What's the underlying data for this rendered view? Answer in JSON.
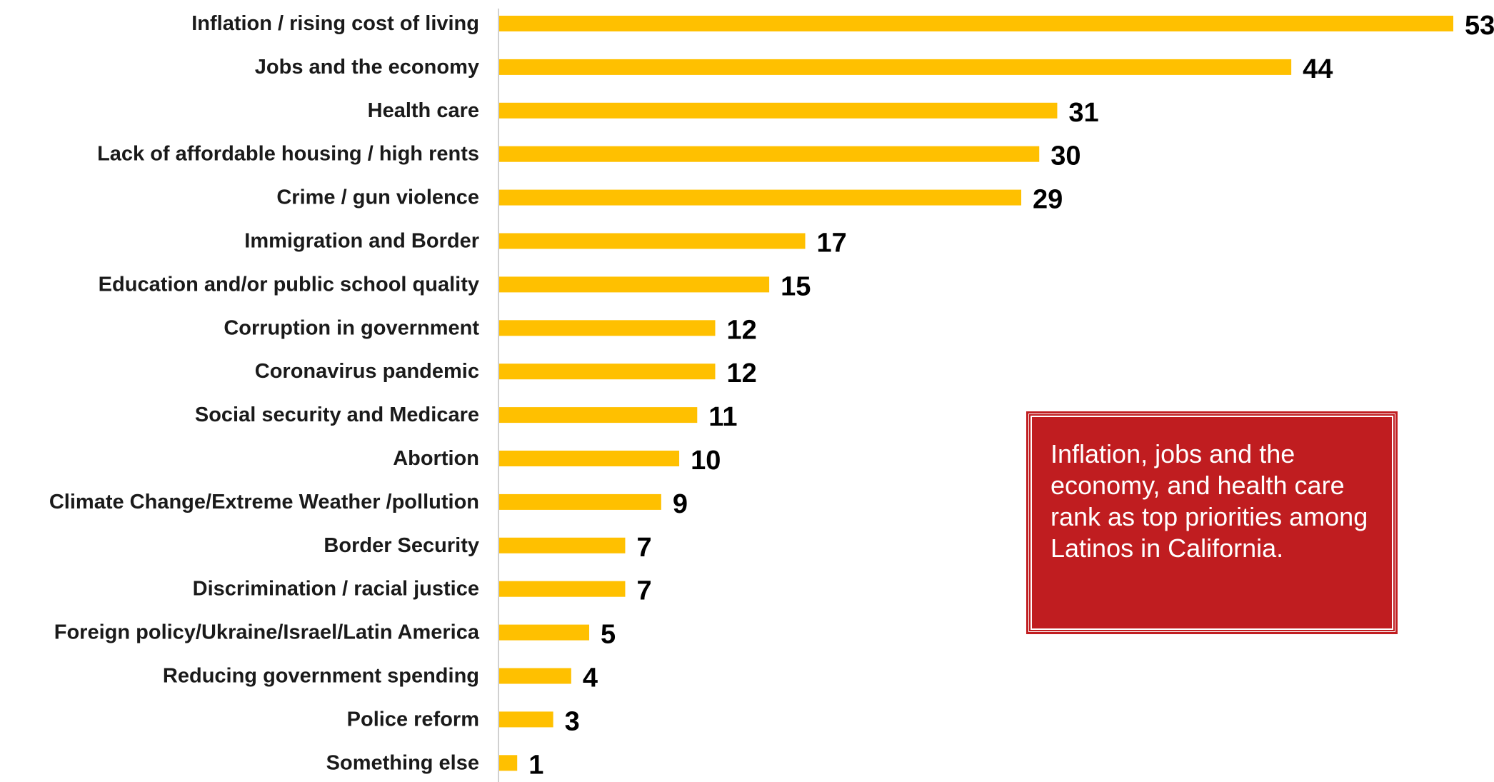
{
  "chart_data": {
    "type": "bar",
    "orientation": "horizontal",
    "categories": [
      "Inflation / rising cost of living",
      "Jobs and the economy",
      "Health care",
      "Lack of affordable housing / high rents",
      "Crime / gun violence",
      "Immigration and Border",
      "Education and/or public school quality",
      "Corruption in government",
      "Coronavirus pandemic",
      "Social security and Medicare",
      "Abortion",
      "Climate Change/Extreme Weather /pollution",
      "Border Security",
      "Discrimination / racial justice",
      "Foreign policy/Ukraine/Israel/Latin America",
      "Reducing government spending",
      "Police reform",
      "Something else"
    ],
    "values": [
      53,
      44,
      31,
      30,
      29,
      17,
      15,
      12,
      12,
      11,
      10,
      9,
      7,
      7,
      5,
      4,
      3,
      1
    ],
    "data_labels": [
      "53",
      "44",
      "31",
      "30",
      "29",
      "17",
      "15",
      "12",
      "12",
      "11",
      "10",
      "9",
      "7",
      "7",
      "5",
      "4",
      "3",
      "1"
    ],
    "title": "",
    "xlabel": "",
    "ylabel": "",
    "xlim": [
      0,
      53
    ],
    "grid": false,
    "legend": "none",
    "bar_color": "#FFC000"
  },
  "callout": {
    "text": "Inflation, jobs and the economy, and health care rank as top priorities among Latinos in California.",
    "background_color": "#C01D20",
    "text_color": "#FFFFFF"
  }
}
